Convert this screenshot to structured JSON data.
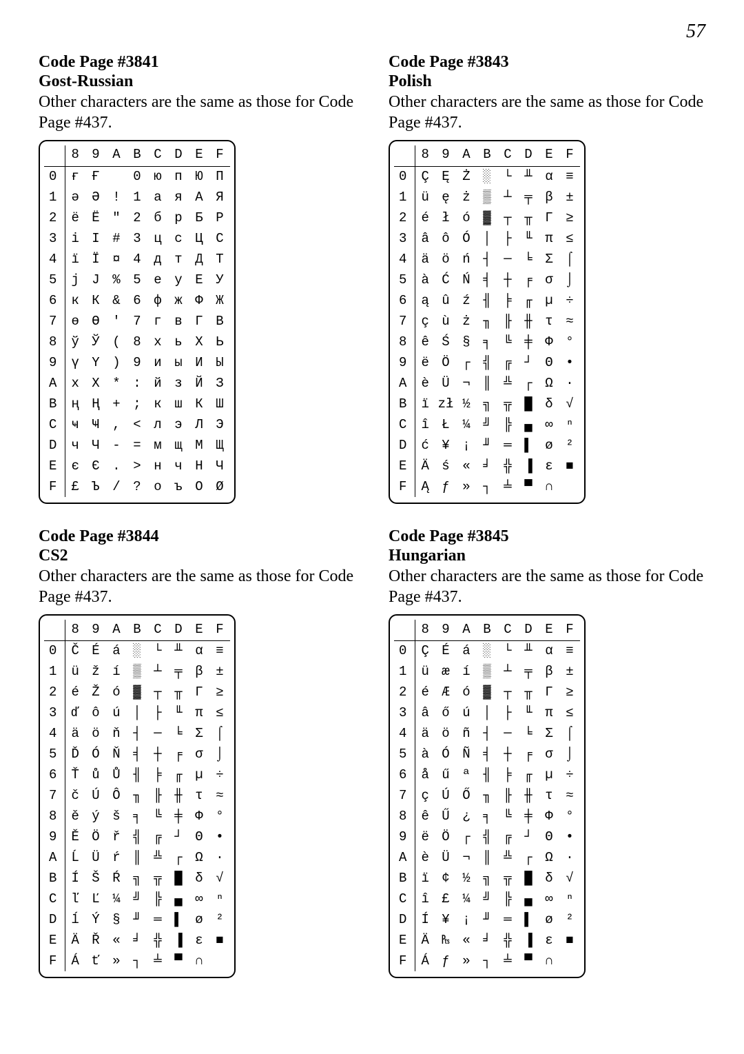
{
  "page_number": "57",
  "columns_header": [
    "8",
    "9",
    "A",
    "B",
    "C",
    "D",
    "E",
    "F"
  ],
  "rows_header": [
    "0",
    "1",
    "2",
    "3",
    "4",
    "5",
    "6",
    "7",
    "8",
    "9",
    "A",
    "B",
    "C",
    "D",
    "E",
    "F"
  ],
  "sections": [
    {
      "title": "Code Page #3841",
      "subtitle": "Gost-Russian",
      "note": "Other characters are the same as those for Code Page #437.",
      "grid": [
        [
          "ғ",
          "Ғ",
          " ",
          "0",
          "ю",
          "п",
          "Ю",
          "П"
        ],
        [
          "ә",
          "Ә",
          "!",
          "1",
          "а",
          "я",
          "А",
          "Я"
        ],
        [
          "ё",
          "Ё",
          "\"",
          "2",
          "б",
          "р",
          "Б",
          "Р"
        ],
        [
          "і",
          "І",
          "#",
          "3",
          "ц",
          "с",
          "Ц",
          "С"
        ],
        [
          "ї",
          "Ї",
          "¤",
          "4",
          "д",
          "т",
          "Д",
          "Т"
        ],
        [
          "ј",
          "Ј",
          "%",
          "5",
          "е",
          "у",
          "Е",
          "У"
        ],
        [
          "к",
          "К",
          "&",
          "6",
          "ф",
          "ж",
          "Ф",
          "Ж"
        ],
        [
          "ө",
          "Ө",
          "'",
          "7",
          "г",
          "в",
          "Г",
          "В"
        ],
        [
          "ў",
          "Ў",
          "(",
          "8",
          "х",
          "ь",
          "Х",
          "Ь"
        ],
        [
          "ү",
          "Ү",
          ")",
          "9",
          "и",
          "ы",
          "И",
          "Ы"
        ],
        [
          "х",
          "Х",
          "*",
          ":",
          "й",
          "з",
          "Й",
          "З"
        ],
        [
          "ң",
          "Ң",
          "+",
          ";",
          "к",
          "ш",
          "К",
          "Ш"
        ],
        [
          "ҹ",
          "Ҹ",
          ",",
          "<",
          "л",
          "э",
          "Л",
          "Э"
        ],
        [
          "ч",
          "Ч",
          "-",
          "=",
          "м",
          "щ",
          "М",
          "Щ"
        ],
        [
          "є",
          "Є",
          ".",
          ">",
          "н",
          "ч",
          "Н",
          "Ч"
        ],
        [
          "£",
          "Ъ",
          "/",
          "?",
          "о",
          "ъ",
          "О",
          "Ø"
        ]
      ]
    },
    {
      "title": "Code Page #3843",
      "subtitle": "Polish",
      "note": "Other characters are the same as those for Code Page #437.",
      "grid": [
        [
          "Ç",
          "Ę",
          "Ż",
          "░",
          "└",
          "╨",
          "α",
          "≡"
        ],
        [
          "ü",
          "ę",
          "ż",
          "▒",
          "┴",
          "╤",
          "β",
          "±"
        ],
        [
          "é",
          "ł",
          "ó",
          "▓",
          "┬",
          "╥",
          "Γ",
          "≥"
        ],
        [
          "â",
          "ô",
          "Ó",
          "│",
          "├",
          "╙",
          "π",
          "≤"
        ],
        [
          "ä",
          "ö",
          "ń",
          "┤",
          "─",
          "╘",
          "Σ",
          "⌠"
        ],
        [
          "à",
          "Ć",
          "Ń",
          "╡",
          "┼",
          "╒",
          "σ",
          "⌡"
        ],
        [
          "ą",
          "û",
          "ź",
          "╢",
          "╞",
          "╓",
          "µ",
          "÷"
        ],
        [
          "ç",
          "ù",
          "ż",
          "╖",
          "╟",
          "╫",
          "τ",
          "≈"
        ],
        [
          "ê",
          "Ś",
          "§",
          "╕",
          "╚",
          "╪",
          "Φ",
          "°"
        ],
        [
          "ë",
          "Ö",
          "┌",
          "╣",
          "╔",
          "┘",
          "Θ",
          "•"
        ],
        [
          "è",
          "Ü",
          "¬",
          "║",
          "╩",
          "┌",
          "Ω",
          "·"
        ],
        [
          "ï",
          "zł",
          "½",
          "╗",
          "╦",
          "█",
          "δ",
          "√"
        ],
        [
          "î",
          "Ł",
          "¼",
          "╝",
          "╠",
          "▄",
          "∞",
          "ⁿ"
        ],
        [
          "ć",
          "¥",
          "¡",
          "╜",
          "═",
          "▌",
          "ø",
          "²"
        ],
        [
          "Ä",
          "ś",
          "«",
          "╛",
          "╬",
          "▐",
          "ε",
          "■"
        ],
        [
          "Ą",
          "ƒ",
          "»",
          "┐",
          "╧",
          "▀",
          "∩",
          " "
        ]
      ]
    },
    {
      "title": "Code Page #3844",
      "subtitle": "CS2",
      "note": "Other characters are the same as those for Code Page #437.",
      "grid": [
        [
          "Č",
          "É",
          "á",
          "░",
          "└",
          "╨",
          "α",
          "≡"
        ],
        [
          "ü",
          "ž",
          "í",
          "▒",
          "┴",
          "╤",
          "β",
          "±"
        ],
        [
          "é",
          "Ž",
          "ó",
          "▓",
          "┬",
          "╥",
          "Γ",
          "≥"
        ],
        [
          "ď",
          "ô",
          "ú",
          "│",
          "├",
          "╙",
          "π",
          "≤"
        ],
        [
          "ä",
          "ö",
          "ň",
          "┤",
          "─",
          "╘",
          "Σ",
          "⌠"
        ],
        [
          "Ď",
          "Ó",
          "Ň",
          "╡",
          "┼",
          "╒",
          "σ",
          "⌡"
        ],
        [
          "Ť",
          "ů",
          "Ů",
          "╢",
          "╞",
          "╓",
          "µ",
          "÷"
        ],
        [
          "č",
          "Ú",
          "Ô",
          "╖",
          "╟",
          "╫",
          "τ",
          "≈"
        ],
        [
          "ě",
          "ý",
          "š",
          "╕",
          "╚",
          "╪",
          "Φ",
          "°"
        ],
        [
          "Ě",
          "Ö",
          "ř",
          "╣",
          "╔",
          "┘",
          "Θ",
          "•"
        ],
        [
          "Ĺ",
          "Ü",
          "ŕ",
          "║",
          "╩",
          "┌",
          "Ω",
          "·"
        ],
        [
          "Í",
          "Š",
          "Ŕ",
          "╗",
          "╦",
          "█",
          "δ",
          "√"
        ],
        [
          "ľ",
          "Ľ",
          "¼",
          "╝",
          "╠",
          "▄",
          "∞",
          "ⁿ"
        ],
        [
          "ĺ",
          "Ý",
          "§",
          "╜",
          "═",
          "▌",
          "ø",
          "²"
        ],
        [
          "Ä",
          "Ř",
          "«",
          "╛",
          "╬",
          "▐",
          "ε",
          "■"
        ],
        [
          "Á",
          "ť",
          "»",
          "┐",
          "╧",
          "▀",
          "∩",
          " "
        ]
      ]
    },
    {
      "title": "Code Page #3845",
      "subtitle": "Hungarian",
      "note": "Other characters are the same as those for Code Page #437.",
      "grid": [
        [
          "Ç",
          "É",
          "á",
          "░",
          "└",
          "╨",
          "α",
          "≡"
        ],
        [
          "ü",
          "æ",
          "í",
          "▒",
          "┴",
          "╤",
          "β",
          "±"
        ],
        [
          "é",
          "Æ",
          "ó",
          "▓",
          "┬",
          "╥",
          "Γ",
          "≥"
        ],
        [
          "â",
          "ő",
          "ú",
          "│",
          "├",
          "╙",
          "π",
          "≤"
        ],
        [
          "ä",
          "ö",
          "ñ",
          "┤",
          "─",
          "╘",
          "Σ",
          "⌠"
        ],
        [
          "à",
          "Ó",
          "Ñ",
          "╡",
          "┼",
          "╒",
          "σ",
          "⌡"
        ],
        [
          "å",
          "ű",
          "ª",
          "╢",
          "╞",
          "╓",
          "µ",
          "÷"
        ],
        [
          "ç",
          "Ú",
          "Ő",
          "╖",
          "╟",
          "╫",
          "τ",
          "≈"
        ],
        [
          "ê",
          "Ű",
          "¿",
          "╕",
          "╚",
          "╪",
          "Φ",
          "°"
        ],
        [
          "ë",
          "Ö",
          "┌",
          "╣",
          "╔",
          "┘",
          "Θ",
          "•"
        ],
        [
          "è",
          "Ü",
          "¬",
          "║",
          "╩",
          "┌",
          "Ω",
          "·"
        ],
        [
          "ï",
          "¢",
          "½",
          "╗",
          "╦",
          "█",
          "δ",
          "√"
        ],
        [
          "î",
          "£",
          "¼",
          "╝",
          "╠",
          "▄",
          "∞",
          "ⁿ"
        ],
        [
          "Í",
          "¥",
          "¡",
          "╜",
          "═",
          "▌",
          "ø",
          "²"
        ],
        [
          "Ä",
          "₧",
          "«",
          "╛",
          "╬",
          "▐",
          "ε",
          "■"
        ],
        [
          "Á",
          "ƒ",
          "»",
          "┐",
          "╧",
          "▀",
          "∩",
          " "
        ]
      ]
    }
  ]
}
